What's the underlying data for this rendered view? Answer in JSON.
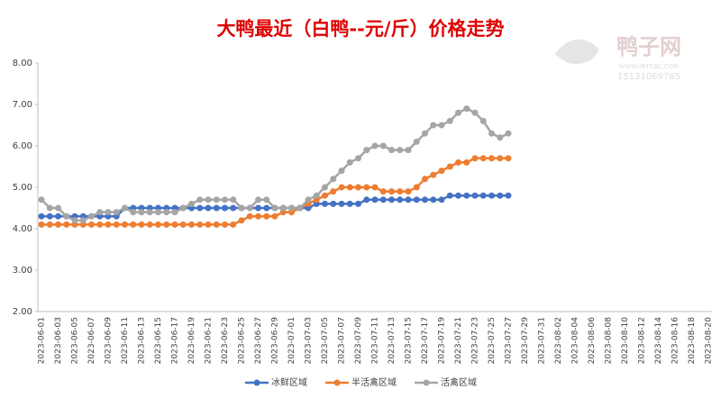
{
  "chart_data": {
    "type": "line",
    "title": "大鸭最近（白鸭--元/斤）价格走势",
    "watermark": {
      "name": "鸭子网",
      "site": "WWW.INTEBC.COM",
      "phone": "15131069765"
    },
    "categories": [
      "2023-06-01",
      null,
      "2023-06-03",
      null,
      "2023-06-05",
      null,
      "2023-06-07",
      null,
      "2023-06-09",
      null,
      "2023-06-11",
      null,
      "2023-06-13",
      null,
      "2023-06-15",
      null,
      "2023-06-17",
      null,
      "2023-06-19",
      null,
      "2023-06-21",
      null,
      "2023-06-23",
      null,
      "2023-06-25",
      null,
      "2023-06-27",
      null,
      "2023-06-29",
      null,
      "2023-07-01",
      null,
      "2023-07-03",
      null,
      "2023-07-05",
      null,
      "2023-07-07",
      null,
      "2023-07-09",
      null,
      "2023-07-11",
      null,
      "2023-07-13",
      null,
      "2023-07-15",
      null,
      "2023-07-17",
      null,
      "2023-07-19",
      null,
      "2023-07-21",
      null,
      "2023-07-23",
      null,
      "2023-07-25",
      null,
      "2023-07-27",
      null,
      "2023-07-29",
      null,
      "2023-07-31",
      null,
      "2023-08-02",
      null,
      "2023-08-04",
      null,
      "2023-08-06",
      null,
      "2023-08-08",
      null,
      "2023-08-10",
      null,
      "2023-08-12",
      null,
      "2023-08-14",
      null,
      "2023-08-16",
      null,
      "2023-08-18",
      null,
      "2023-08-20"
    ],
    "series": [
      {
        "name": "冰鲜区域",
        "color": "#4472c4",
        "values": [
          4.3,
          4.3,
          4.3,
          4.3,
          4.3,
          4.3,
          4.3,
          4.3,
          4.3,
          4.3,
          4.5,
          4.5,
          4.5,
          4.5,
          4.5,
          4.5,
          4.5,
          4.5,
          4.5,
          4.5,
          4.5,
          4.5,
          4.5,
          4.5,
          4.5,
          4.5,
          4.5,
          4.5,
          4.5,
          4.5,
          4.5,
          4.5,
          4.5,
          4.6,
          4.6,
          4.6,
          4.6,
          4.6,
          4.6,
          4.7,
          4.7,
          4.7,
          4.7,
          4.7,
          4.7,
          4.7,
          4.7,
          4.7,
          4.7,
          4.8,
          4.8,
          4.8,
          4.8,
          4.8,
          4.8,
          4.8,
          4.8,
          null,
          null,
          null,
          null,
          null,
          null,
          null,
          null,
          null,
          null,
          null,
          null,
          null,
          null,
          null,
          null,
          null,
          null,
          null,
          null,
          null,
          null,
          null,
          null
        ]
      },
      {
        "name": "半活禽区域",
        "color": "#ed7d31",
        "values": [
          4.1,
          4.1,
          4.1,
          4.1,
          4.1,
          4.1,
          4.1,
          4.1,
          4.1,
          4.1,
          4.1,
          4.1,
          4.1,
          4.1,
          4.1,
          4.1,
          4.1,
          4.1,
          4.1,
          4.1,
          4.1,
          4.1,
          4.1,
          4.1,
          4.2,
          4.3,
          4.3,
          4.3,
          4.3,
          4.4,
          4.4,
          4.5,
          4.6,
          4.7,
          4.8,
          4.9,
          5.0,
          5.0,
          5.0,
          5.0,
          5.0,
          4.9,
          4.9,
          4.9,
          4.9,
          5.0,
          5.2,
          5.3,
          5.4,
          5.5,
          5.6,
          5.6,
          5.7,
          5.7,
          5.7,
          5.7,
          5.7,
          null,
          null,
          null,
          null,
          null,
          null,
          null,
          null,
          null,
          null,
          null,
          null,
          null,
          null,
          null,
          null,
          null,
          null,
          null,
          null,
          null,
          null,
          null,
          null
        ]
      },
      {
        "name": "活禽区域",
        "color": "#a5a5a5",
        "values": [
          4.7,
          4.5,
          4.5,
          4.3,
          4.2,
          4.2,
          4.3,
          4.4,
          4.4,
          4.4,
          4.5,
          4.4,
          4.4,
          4.4,
          4.4,
          4.4,
          4.4,
          4.5,
          4.6,
          4.7,
          4.7,
          4.7,
          4.7,
          4.7,
          4.5,
          4.5,
          4.7,
          4.7,
          4.5,
          4.5,
          4.5,
          4.5,
          4.7,
          4.8,
          5.0,
          5.2,
          5.4,
          5.6,
          5.7,
          5.9,
          6.0,
          6.0,
          5.9,
          5.9,
          5.9,
          6.1,
          6.3,
          6.5,
          6.5,
          6.6,
          6.8,
          6.9,
          6.8,
          6.6,
          6.3,
          6.2,
          6.3,
          null,
          null,
          null,
          null,
          null,
          null,
          null,
          null,
          null,
          null,
          null,
          null,
          null,
          null,
          null,
          null,
          null,
          null,
          null,
          null,
          null,
          null,
          null,
          null
        ]
      }
    ],
    "ylim": [
      2,
      8
    ],
    "yticks": [
      {
        "value": 2,
        "label": "2.00"
      },
      {
        "value": 3,
        "label": "3.00"
      },
      {
        "value": 4,
        "label": "4.00"
      },
      {
        "value": 5,
        "label": "5.00"
      },
      {
        "value": 6,
        "label": "6.00"
      },
      {
        "value": 7,
        "label": "7.00"
      },
      {
        "value": 8,
        "label": "8.00"
      }
    ],
    "legend": "bottom"
  }
}
